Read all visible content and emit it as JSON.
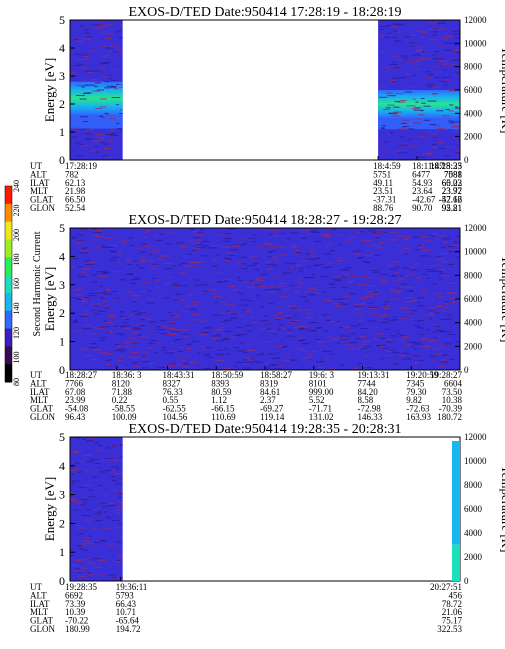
{
  "colorbar": {
    "label": "Second Harmonic Current",
    "ticks": [
      "80",
      "100",
      "120",
      "140",
      "160",
      "180",
      "200",
      "220",
      "240"
    ],
    "colors": [
      "#000000",
      "#3a0a5a",
      "#3b1fc4",
      "#2f6bff",
      "#17b8f0",
      "#19e0b8",
      "#27ef57",
      "#9bf01d",
      "#f0e718",
      "#ff8c00",
      "#ff1a00"
    ]
  },
  "chart_data": [
    {
      "type": "heatmap",
      "title": "EXOS-D/TED   Date:950414   17:28:19 - 18:28:19",
      "ylabel": "Energy [eV]",
      "ylabel_right": "Temperature [K]",
      "ylim": [
        0,
        5
      ],
      "y_ticks": [
        "0",
        "1",
        "2",
        "3",
        "4",
        "5"
      ],
      "y2lim": [
        0,
        12000
      ],
      "y2_ticks": [
        "0",
        "2000",
        "4000",
        "6000",
        "8000",
        "10000",
        "12000"
      ],
      "data_segments": [
        {
          "start": 0.0,
          "end": 0.135,
          "band_center_eV": 2.2,
          "band_width_eV": 0.6
        },
        {
          "start": 0.79,
          "end": 1.0,
          "band_center_eV": 2.0,
          "band_width_eV": 0.5
        }
      ],
      "row_labels": [
        "UT",
        "ALT",
        "ILAT",
        "MLT",
        "GLAT",
        "GLON"
      ],
      "columns": [
        {
          "pos": 0.0,
          "values": [
            "17:28:19",
            "782",
            "62.13",
            "21.98",
            "66.50",
            "52.54"
          ]
        },
        {
          "pos": 0.79,
          "values": [
            "18:4:59",
            "5751",
            "49.11",
            "23.51",
            "-37.31",
            "88.76"
          ]
        },
        {
          "pos": 0.89,
          "values": [
            "18:11:47",
            "6477",
            "54.93",
            "23.64",
            "-42.67",
            "90.70"
          ]
        },
        {
          "pos": 1.005,
          "values": [
            "18:18:35",
            "7088",
            "60.22",
            "23.77",
            "-47.62",
            "92.81"
          ]
        },
        {
          "pos": 1.12,
          "values": [
            "18:25:23",
            "7581",
            "65.03",
            "23.92",
            "-52.16",
            "95.21"
          ]
        }
      ]
    },
    {
      "type": "heatmap",
      "title": "EXOS-D/TED   Date:950414   18:28:27 - 19:28:27",
      "ylabel": "Energy [eV]",
      "ylabel_right": "Temperature [K]",
      "ylim": [
        0,
        5
      ],
      "y_ticks": [
        "0",
        "1",
        "2",
        "3",
        "4",
        "5"
      ],
      "y2lim": [
        0,
        12000
      ],
      "y2_ticks": [
        "0",
        "2000",
        "4000",
        "6000",
        "8000",
        "10000",
        "12000"
      ],
      "data_segments": [
        {
          "start": 0.0,
          "end": 1.0,
          "band_center_eV": null,
          "band_width_eV": 0
        }
      ],
      "row_labels": [
        "UT",
        "ALT",
        "ILAT",
        "MLT",
        "GLAT",
        "GLON"
      ],
      "columns": [
        {
          "pos": 0.0,
          "values": [
            "18:28:27",
            "7766",
            "67.08",
            "23.99",
            "-54.08",
            "96.43"
          ]
        },
        {
          "pos": 0.12,
          "values": [
            "18:36: 3",
            "8120",
            "71.88",
            "0.22",
            "-58.55",
            "100.09"
          ]
        },
        {
          "pos": 0.25,
          "values": [
            "18:43:31",
            "8327",
            "76.33",
            "0.55",
            "-62.55",
            "104.56"
          ]
        },
        {
          "pos": 0.375,
          "values": [
            "18:50:59",
            "8393",
            "80.59",
            "1.12",
            "-66.15",
            "110.69"
          ]
        },
        {
          "pos": 0.5,
          "values": [
            "18:58:27",
            "8319",
            "84.61",
            "2.37",
            "-69.27",
            "119.14"
          ]
        },
        {
          "pos": 0.625,
          "values": [
            "19:6: 3",
            "8101",
            "999.00",
            "5.52",
            "-71.71",
            "131.02"
          ]
        },
        {
          "pos": 0.75,
          "values": [
            "19:13:31",
            "7744",
            "84.20",
            "8.58",
            "-72.98",
            "146.33"
          ]
        },
        {
          "pos": 0.875,
          "values": [
            "19:20:59",
            "7345",
            "79.30",
            "9.82",
            "-72.63",
            "163.93"
          ]
        },
        {
          "pos": 1.0,
          "values": [
            "19:28:27",
            "6604",
            "73.50",
            "10.38",
            "-70.39",
            "180.72"
          ]
        }
      ]
    },
    {
      "type": "heatmap",
      "title": "EXOS-D/TED   Date:950414   19:28:35 - 20:28:31",
      "ylabel": "Energy [eV]",
      "ylabel_right": "Temperature [K]",
      "ylim": [
        0,
        5
      ],
      "y_ticks": [
        "0",
        "1",
        "2",
        "3",
        "4",
        "5"
      ],
      "y2lim": [
        0,
        12000
      ],
      "y2_ticks": [
        "0",
        "2000",
        "4000",
        "6000",
        "8000",
        "10000",
        "12000"
      ],
      "data_segments": [
        {
          "start": 0.0,
          "end": 0.135,
          "band_center_eV": null,
          "band_width_eV": 0
        }
      ],
      "row_labels": [
        "UT",
        "ALT",
        "ILAT",
        "MLT",
        "GLAT",
        "GLON"
      ],
      "columns": [
        {
          "pos": 0.0,
          "values": [
            "19:28:35",
            "6692",
            "73.39",
            "10.39",
            "-70.22",
            "180.99"
          ]
        },
        {
          "pos": 0.13,
          "values": [
            "19:36:11",
            "5793",
            "66.43",
            "10.71",
            "-65.64",
            "194.72"
          ]
        },
        {
          "pos": 1.005,
          "values": [
            "20:27:51",
            "456",
            "78.72",
            "21.06",
            "75.17",
            "322.53"
          ]
        }
      ]
    }
  ]
}
